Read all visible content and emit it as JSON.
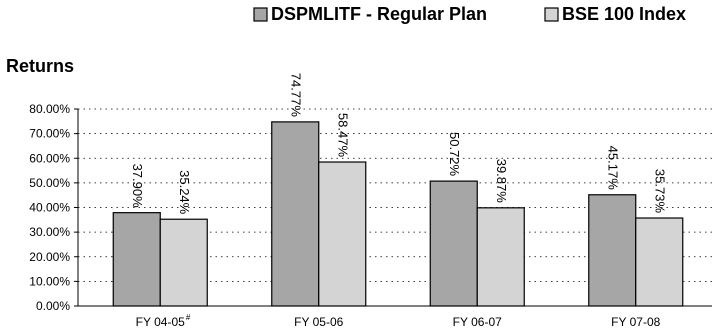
{
  "chart_data": {
    "type": "bar",
    "title": "Returns",
    "xlabel": "",
    "ylabel": "",
    "categories": [
      "FY 04-05",
      "FY 05-06",
      "FY 06-07",
      "FY 07-08"
    ],
    "category_superscripts": [
      "#",
      "",
      "",
      ""
    ],
    "series": [
      {
        "name": "DSPMLITF - Regular Plan",
        "color": "#a6a6a6",
        "values": [
          37.9,
          74.77,
          50.72,
          45.17
        ],
        "labels": [
          "37.90%",
          "74.77%",
          "50.72%",
          "45.17%"
        ]
      },
      {
        "name": "BSE 100 Index",
        "color": "#d4d4d4",
        "values": [
          35.24,
          58.47,
          39.87,
          35.73
        ],
        "labels": [
          "35.24%",
          "58.47%",
          "39.87%",
          "35.73%"
        ]
      }
    ],
    "ylim": [
      0,
      80
    ],
    "yticks": [
      0,
      10,
      20,
      30,
      40,
      50,
      60,
      70,
      80
    ],
    "ytick_labels": [
      "0.00%",
      "10.00%",
      "20.00%",
      "30.00%",
      "40.00%",
      "50.00%",
      "60.00%",
      "70.00%",
      "80.00%"
    ],
    "grid": "dotted horizontal",
    "legend_position": "top-right"
  }
}
